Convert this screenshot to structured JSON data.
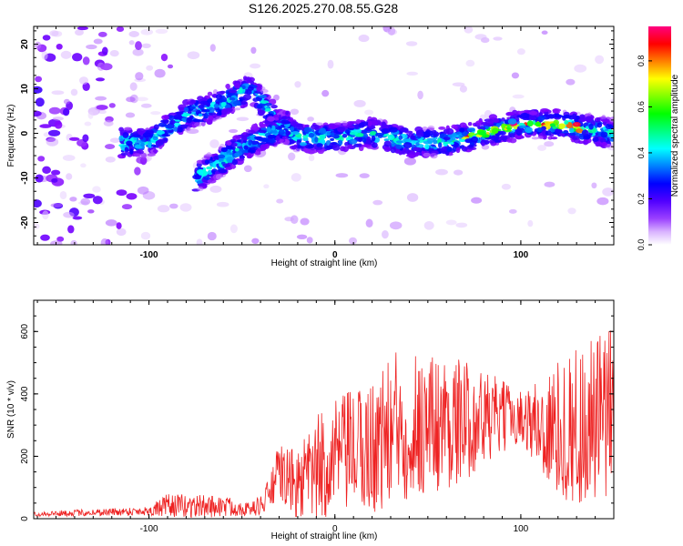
{
  "title": "S126.2025.270.08.55.G28",
  "chart_data": [
    {
      "type": "heatmap",
      "name": "spectrogram",
      "xlabel": "Height of straight line (km)",
      "ylabel": "Frequency (Hz)",
      "xlim": [
        -162,
        150
      ],
      "ylim": [
        -25,
        24
      ],
      "xticks": [
        -100,
        0,
        100
      ],
      "yticks": [
        -20,
        -10,
        0,
        10,
        20
      ],
      "colorbar": {
        "label": "Normalized spectral amplitude",
        "range": [
          0,
          0.95
        ],
        "ticks": [
          "0.0",
          "0.2",
          "0.4",
          "0.6",
          "0.8"
        ],
        "colors": [
          "#ffffff",
          "#d9b3ff",
          "#8000ff",
          "#4000ff",
          "#0000ff",
          "#0080ff",
          "#00ffff",
          "#00ff80",
          "#00ff00",
          "#80ff00",
          "#ffff00",
          "#ff8000",
          "#ff0000",
          "#ff0080"
        ]
      },
      "ridge": [
        {
          "x": -115,
          "y": -2
        },
        {
          "x": -100,
          "y": -2
        },
        {
          "x": -90,
          "y": 1
        },
        {
          "x": -80,
          "y": 4
        },
        {
          "x": -65,
          "y": 6
        },
        {
          "x": -55,
          "y": 8
        },
        {
          "x": -45,
          "y": 10
        },
        {
          "x": -30,
          "y": 2
        },
        {
          "x": -20,
          "y": -1
        },
        {
          "x": 0,
          "y": -1
        },
        {
          "x": 20,
          "y": 0
        },
        {
          "x": 40,
          "y": -2
        },
        {
          "x": 60,
          "y": -2
        },
        {
          "x": 80,
          "y": 0
        },
        {
          "x": 100,
          "y": 2
        },
        {
          "x": 120,
          "y": 2
        },
        {
          "x": 150,
          "y": 0
        }
      ],
      "secondary_ridge": [
        {
          "x": -75,
          "y": -10
        },
        {
          "x": -60,
          "y": -6
        },
        {
          "x": -50,
          "y": -3
        },
        {
          "x": -35,
          "y": 0
        },
        {
          "x": -25,
          "y": 2
        }
      ]
    },
    {
      "type": "line",
      "name": "snr",
      "xlabel": "Height of straight line (km)",
      "ylabel": "SNR (10 * v/v)",
      "xlim": [
        -162,
        150
      ],
      "ylim": [
        0,
        700
      ],
      "xticks": [
        -100,
        0,
        100
      ],
      "yticks": [
        0,
        200,
        400,
        600
      ],
      "color": "#ee2222",
      "envelope": [
        {
          "x": -162,
          "base": 15,
          "amp": 8
        },
        {
          "x": -100,
          "base": 25,
          "amp": 15
        },
        {
          "x": -90,
          "base": 40,
          "amp": 40
        },
        {
          "x": -60,
          "base": 40,
          "amp": 35
        },
        {
          "x": -45,
          "base": 30,
          "amp": 20
        },
        {
          "x": -38,
          "base": 50,
          "amp": 40
        },
        {
          "x": -30,
          "base": 150,
          "amp": 90
        },
        {
          "x": -20,
          "base": 100,
          "amp": 120
        },
        {
          "x": -10,
          "base": 150,
          "amp": 180
        },
        {
          "x": 0,
          "base": 200,
          "amp": 180
        },
        {
          "x": 20,
          "base": 230,
          "amp": 220
        },
        {
          "x": 35,
          "base": 300,
          "amp": 260
        },
        {
          "x": 60,
          "base": 310,
          "amp": 220
        },
        {
          "x": 80,
          "base": 320,
          "amp": 160
        },
        {
          "x": 100,
          "base": 330,
          "amp": 80
        },
        {
          "x": 115,
          "base": 280,
          "amp": 200
        },
        {
          "x": 135,
          "base": 300,
          "amp": 280
        },
        {
          "x": 150,
          "base": 320,
          "amp": 300
        }
      ]
    }
  ]
}
